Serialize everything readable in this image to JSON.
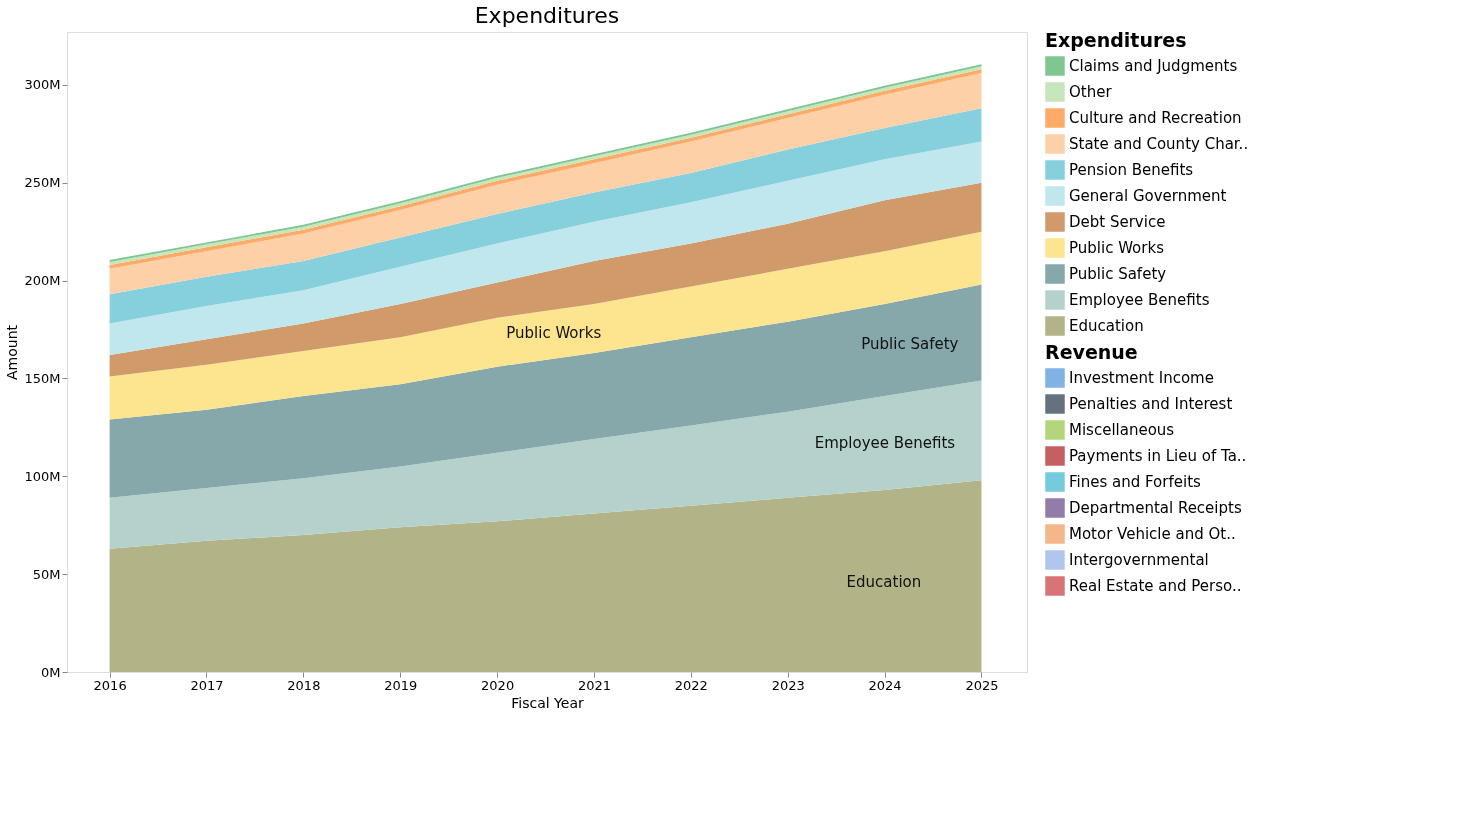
{
  "chart_data": {
    "type": "area",
    "stacked": true,
    "title": "Expenditures",
    "xlabel": "Fiscal Year",
    "ylabel": "Amount",
    "legend_title": [
      "Expenditures",
      "Revenue"
    ],
    "legend": "right",
    "grid": false,
    "marker": "none",
    "x": [
      2016,
      2017,
      2018,
      2019,
      2020,
      2021,
      2022,
      2023,
      2024,
      2025
    ],
    "xlim": [
      2015.56,
      2025.47
    ],
    "xticks": [
      2016,
      2017,
      2018,
      2019,
      2020,
      2021,
      2022,
      2023,
      2024,
      2025
    ],
    "ylim": [
      0,
      327
    ],
    "yticks": [
      {
        "value": 0,
        "label": "0M"
      },
      {
        "value": 50,
        "label": "50M"
      },
      {
        "value": 100,
        "label": "100M"
      },
      {
        "value": 150,
        "label": "150M"
      },
      {
        "value": 200,
        "label": "200M"
      },
      {
        "value": 250,
        "label": "250M"
      },
      {
        "value": 300,
        "label": "300M"
      }
    ],
    "series": [
      {
        "name": "Education",
        "color": "#b2b386",
        "values": [
          63,
          67,
          70,
          74,
          77,
          81,
          85,
          89,
          93,
          98
        ]
      },
      {
        "name": "Employee Benefits",
        "color": "#b5d1cc",
        "values": [
          26,
          27,
          29,
          31,
          35,
          38,
          41,
          44,
          48,
          51
        ]
      },
      {
        "name": "Public Safety",
        "color": "#86a8ab",
        "values": [
          40,
          40,
          42,
          42,
          44,
          44,
          45,
          46,
          47,
          49
        ]
      },
      {
        "name": "Public Works",
        "color": "#fde48e",
        "values": [
          22,
          23,
          23,
          24,
          25,
          25,
          26,
          27,
          27,
          27
        ]
      },
      {
        "name": "Debt Service",
        "color": "#d19a6a",
        "values": [
          11,
          13,
          14,
          17,
          18,
          22,
          22,
          23,
          26,
          25
        ]
      },
      {
        "name": "General Government",
        "color": "#bfe7ed",
        "values": [
          16,
          17,
          17,
          19,
          20,
          20,
          21,
          22,
          21,
          21
        ]
      },
      {
        "name": "Pension Benefits",
        "color": "#86d0de",
        "values": [
          15,
          15,
          15,
          15,
          15,
          15,
          15,
          16,
          16,
          17
        ]
      },
      {
        "name": "State and County Char..",
        "color": "#fdd0a8",
        "values": [
          13,
          13,
          14,
          14,
          15,
          15,
          16,
          16,
          17,
          18
        ]
      },
      {
        "name": "Culture and Recreation",
        "color": "#fdab67",
        "values": [
          2,
          2,
          2,
          2,
          2,
          2,
          2,
          2,
          2,
          2
        ]
      },
      {
        "name": "Other",
        "color": "#c7e6bb",
        "values": [
          1.5,
          1.5,
          1.5,
          1.5,
          1.5,
          1.5,
          1.5,
          1.5,
          1.5,
          1.5
        ]
      },
      {
        "name": "Claims and Judgments",
        "color": "#7fc690",
        "values": [
          1,
          1,
          1,
          1,
          1,
          1,
          1,
          1,
          1,
          1
        ]
      },
      {
        "name": "Investment Income",
        "color": "#7fb2e5",
        "values": [
          null,
          null,
          null,
          null,
          null,
          null,
          null,
          null,
          null,
          null
        ]
      },
      {
        "name": "Penalties and Interest",
        "color": "#66717e",
        "values": [
          null,
          null,
          null,
          null,
          null,
          null,
          null,
          null,
          null,
          null
        ]
      },
      {
        "name": "Miscellaneous",
        "color": "#b4d67a",
        "values": [
          null,
          null,
          null,
          null,
          null,
          null,
          null,
          null,
          null,
          null
        ]
      },
      {
        "name": "Payments in Lieu of Ta..",
        "color": "#c55f62",
        "values": [
          null,
          null,
          null,
          null,
          null,
          null,
          null,
          null,
          null,
          null
        ]
      },
      {
        "name": "Fines and Forfeits",
        "color": "#75cbdd",
        "values": [
          null,
          null,
          null,
          null,
          null,
          null,
          null,
          null,
          null,
          null
        ]
      },
      {
        "name": "Departmental Receipts",
        "color": "#917caa",
        "values": [
          null,
          null,
          null,
          null,
          null,
          null,
          null,
          null,
          null,
          null
        ]
      },
      {
        "name": "Motor Vehicle and Ot..",
        "color": "#f5b68a",
        "values": [
          null,
          null,
          null,
          null,
          null,
          null,
          null,
          null,
          null,
          null
        ]
      },
      {
        "name": "Intergovernmental",
        "color": "#b0c6ee",
        "values": [
          null,
          null,
          null,
          null,
          null,
          null,
          null,
          null,
          null,
          null
        ]
      },
      {
        "name": "Real Estate and Perso..",
        "color": "#d87377",
        "values": [
          null,
          null,
          null,
          null,
          null,
          null,
          null,
          null,
          null,
          null
        ]
      }
    ],
    "annotations": [
      "Public Works",
      "Public Safety",
      "Employee Benefits",
      "Education"
    ]
  }
}
